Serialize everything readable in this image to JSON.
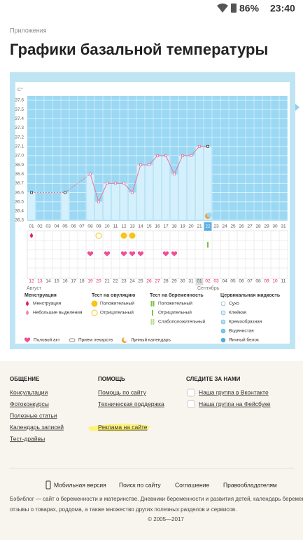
{
  "status_bar": {
    "battery": "86%",
    "time": "23:40"
  },
  "breadcrumb": "Приложения",
  "title": "Графики базальной температуры",
  "chart_data": {
    "type": "line",
    "y_unit": "C°",
    "color": "#e8749a",
    "categories": [
      "01",
      "02",
      "03",
      "04",
      "05",
      "06",
      "07",
      "08",
      "09",
      "10",
      "11",
      "12",
      "13",
      "14",
      "15",
      "16",
      "17",
      "18",
      "19",
      "20",
      "21",
      "22",
      "23",
      "24",
      "25",
      "26",
      "27",
      "28",
      "29",
      "30",
      "31"
    ],
    "values": [
      36.6,
      null,
      null,
      null,
      36.6,
      null,
      null,
      36.8,
      36.5,
      36.7,
      36.7,
      36.7,
      36.6,
      36.9,
      36.9,
      37,
      37,
      36.8,
      37,
      37,
      37.1,
      37.1,
      null,
      null,
      null,
      null,
      null,
      null,
      null,
      null,
      null
    ],
    "ylim": [
      36.3,
      37.6
    ],
    "yticks": [
      36.3,
      36.4,
      36.5,
      36.6,
      36.7,
      36.8,
      36.9,
      {
        "value": 37,
        "label": "37.0"
      },
      37.1,
      37.2,
      37.3,
      37.4,
      37.5,
      37.6
    ],
    "selected": "22",
    "dates": [
      {
        "label": "12",
        "weekend": true
      },
      {
        "label": "13",
        "weekend": true
      },
      {
        "label": "14"
      },
      {
        "label": "15"
      },
      {
        "label": "16"
      },
      {
        "label": "17"
      },
      {
        "label": "18"
      },
      {
        "label": "19",
        "weekend": true
      },
      {
        "label": "20",
        "weekend": true
      },
      {
        "label": "21"
      },
      {
        "label": "22"
      },
      {
        "label": "23"
      },
      {
        "label": "24"
      },
      {
        "label": "25"
      },
      {
        "label": "26",
        "weekend": true
      },
      {
        "label": "27",
        "weekend": true
      },
      {
        "label": "28"
      },
      {
        "label": "29"
      },
      {
        "label": "30"
      },
      {
        "label": "31"
      },
      {
        "label": "01",
        "highlight": true
      },
      {
        "label": "02",
        "weekend": true
      },
      {
        "label": "03",
        "weekend": true
      },
      {
        "label": "04"
      },
      {
        "label": "05"
      },
      {
        "label": "06"
      },
      {
        "label": "07"
      },
      {
        "label": "08"
      },
      {
        "label": "09",
        "weekend": true
      },
      {
        "label": "10",
        "weekend": true
      },
      {
        "label": "11"
      }
    ],
    "months": [
      "Август",
      "Сентябрь"
    ],
    "legend": [
      {
        "title": "Менструация",
        "items": [
          {
            "label": "Менструация",
            "days": [
              1
            ]
          },
          {
            "label": "Небольшие выделения"
          }
        ]
      },
      {
        "title": "Тест на овуляцию",
        "items": [
          {
            "label": "Положительный",
            "days": [
              12,
              13
            ]
          },
          {
            "label": "Отрицательный",
            "days": [
              9
            ]
          }
        ]
      },
      {
        "title": "Тест на беременность",
        "items": [
          {
            "label": "Положительный"
          },
          {
            "label": "Отрицательный",
            "days": [
              22
            ]
          },
          {
            "label": "Слабоположительный"
          }
        ]
      },
      {
        "title": "Цервикальная жидкость",
        "items": [
          {
            "label": "Сухо"
          },
          {
            "label": "Клейкая"
          },
          {
            "label": "Кремообразная"
          },
          {
            "label": "Водянистая"
          },
          {
            "label": "Яичный белок"
          }
        ]
      }
    ],
    "extras": [
      {
        "label": "Половой акт",
        "days": [
          8,
          10,
          12,
          13,
          14,
          17,
          18
        ]
      },
      {
        "label": "Прием лекарств"
      },
      {
        "label": "Лунный календарь",
        "days": [
          22
        ]
      }
    ]
  },
  "footer": {
    "columns": [
      {
        "title": "ОБЩЕНИЕ",
        "links": [
          "Консультации",
          "Фотоконкурсы",
          "Полезные статьи",
          "Календарь записей",
          "Тест-драйвы"
        ]
      },
      {
        "title": "ПОМОЩЬ",
        "links": [
          "Помощь по сайту",
          "Техническая поддержка",
          null,
          "Реклама на сайте"
        ]
      },
      {
        "title": "СЛЕДИТЕ ЗА НАМИ",
        "links": [
          "Наша группа в Вконтакте",
          "Наша группа на Фейсбуке"
        ]
      }
    ],
    "bottom_links": [
      "Мобильная версия",
      "Поиск по сайту",
      "Соглашение",
      "Правообладателям"
    ],
    "about": [
      "Бэбиблог — сайт о беременности и материнстве. Дневники беременности и развития детей, календарь беременности,",
      "отзывы о товарах, роддома, а также множество других полезных разделов и сервисов."
    ],
    "copyright": "© 2005—2017"
  }
}
